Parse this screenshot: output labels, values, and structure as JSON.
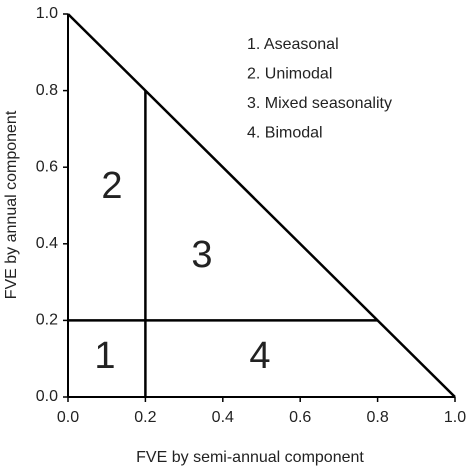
{
  "chart_data": {
    "type": "line",
    "xlabel": "FVE by semi-annual component",
    "ylabel": "FVE by annual component",
    "xlim": [
      0,
      1
    ],
    "ylim": [
      0,
      1
    ],
    "xticks": [
      {
        "value": 0,
        "label": "0.0"
      },
      {
        "value": 0.2,
        "label": "0.2"
      },
      {
        "value": 0.4,
        "label": "0.4"
      },
      {
        "value": 0.6,
        "label": "0.6"
      },
      {
        "value": 0.8,
        "label": "0.8"
      },
      {
        "value": 1,
        "label": "1.0"
      }
    ],
    "yticks": [
      {
        "value": 0,
        "label": "0.0"
      },
      {
        "value": 0.2,
        "label": "0.2"
      },
      {
        "value": 0.4,
        "label": "0.4"
      },
      {
        "value": 0.6,
        "label": "0.6"
      },
      {
        "value": 0.8,
        "label": "0.8"
      },
      {
        "value": 1,
        "label": "1.0"
      }
    ],
    "series": [
      {
        "color": "#000000",
        "x": [
          0,
          1
        ],
        "values": [
          1,
          0
        ]
      },
      {
        "color": "#000000",
        "x": [
          0.2,
          0.2
        ],
        "values": [
          0,
          0.8
        ]
      },
      {
        "color": "#000000",
        "x": [
          0,
          0.8
        ],
        "values": [
          0.2,
          0.2
        ]
      }
    ],
    "regions": [
      "1",
      "2",
      "3",
      "4"
    ],
    "legend": [
      "1. Aseasonal",
      "2. Unimodal",
      "3. Mixed seasonality",
      "4. Bimodal"
    ]
  }
}
